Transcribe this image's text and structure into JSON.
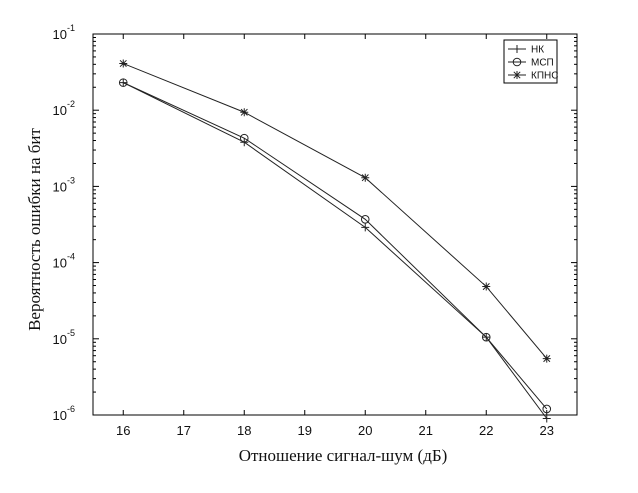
{
  "chart_data": {
    "type": "line",
    "xlabel": "Отношение сигнал-шум (дБ)",
    "ylabel": "Вероятность ошибки на бит",
    "xlim": [
      15.5,
      23.5
    ],
    "ylim": [
      1e-06,
      0.1
    ],
    "yscale": "log",
    "x_ticks": [
      "16",
      "17",
      "18",
      "19",
      "20",
      "21",
      "22",
      "23"
    ],
    "y_ticks": [
      {
        "value": 0.1,
        "base": "10",
        "exp": "-1"
      },
      {
        "value": 0.01,
        "base": "10",
        "exp": "-2"
      },
      {
        "value": 0.001,
        "base": "10",
        "exp": "-3"
      },
      {
        "value": 0.0001,
        "base": "10",
        "exp": "-4"
      },
      {
        "value": 1e-05,
        "base": "10",
        "exp": "-5"
      },
      {
        "value": 1e-06,
        "base": "10",
        "exp": "-6"
      }
    ],
    "grid": false,
    "legend_position": "top-right",
    "series": [
      {
        "name": "НК",
        "marker": "plus",
        "x": [
          16,
          18,
          20,
          22,
          23
        ],
        "y": [
          0.023,
          0.0038,
          0.00029,
          1.05e-05,
          9e-07
        ]
      },
      {
        "name": "МСП",
        "marker": "circle",
        "x": [
          16,
          18,
          20,
          22,
          23
        ],
        "y": [
          0.023,
          0.0043,
          0.00037,
          1.05e-05,
          1.2e-06
        ]
      },
      {
        "name": "КПНС",
        "marker": "star",
        "x": [
          16,
          18,
          20,
          22,
          23
        ],
        "y": [
          0.041,
          0.0094,
          0.0013,
          4.85e-05,
          5.5e-06
        ]
      }
    ],
    "line_color": "#222222"
  }
}
